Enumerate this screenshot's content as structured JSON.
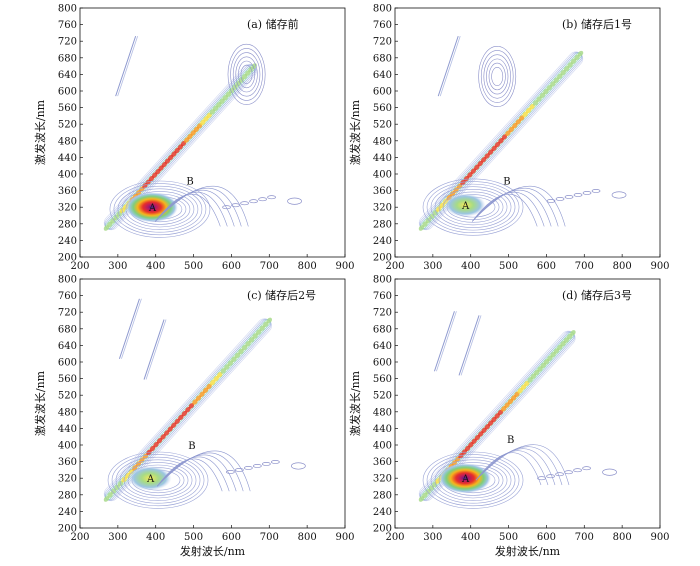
{
  "figure": {
    "xlabel": "发射波长/nm",
    "ylabel": "激发波长/nm"
  },
  "chart_data": [
    {
      "type": "contour",
      "title": "(a) 储存前",
      "xlabel": "",
      "ylabel": "激发波长/nm",
      "xlim": [
        200,
        900
      ],
      "ylim": [
        200,
        800
      ],
      "xticks": [
        200,
        300,
        400,
        500,
        600,
        700,
        800,
        900
      ],
      "yticks": [
        200,
        240,
        280,
        320,
        360,
        400,
        440,
        480,
        520,
        560,
        600,
        640,
        680,
        720,
        760,
        800
      ],
      "grid": false,
      "rayleigh_band": {
        "from": [
          270,
          270
        ],
        "to": [
          660,
          660
        ]
      },
      "peaks": [
        {
          "label": "A",
          "em": 390,
          "ex": 320,
          "intensity": 1.0
        },
        {
          "label": "B",
          "em": 465,
          "ex": 370,
          "intensity": 0.2
        }
      ],
      "scatter_features": [
        {
          "em": 640,
          "ex": 640,
          "intensity": 0.2
        },
        {
          "em": 310,
          "ex": 660,
          "intensity": 0.1
        },
        {
          "em": 640,
          "ex": 320,
          "intensity": 0.15
        }
      ]
    },
    {
      "type": "contour",
      "title": "(b) 储存后1号",
      "xlabel": "",
      "ylabel": "激发波长/nm",
      "xlim": [
        200,
        900
      ],
      "ylim": [
        200,
        800
      ],
      "xticks": [
        200,
        300,
        400,
        500,
        600,
        700,
        800,
        900
      ],
      "yticks": [
        200,
        240,
        280,
        320,
        360,
        400,
        440,
        480,
        520,
        560,
        600,
        640,
        680,
        720,
        760,
        800
      ],
      "grid": false,
      "rayleigh_band": {
        "from": [
          270,
          270
        ],
        "to": [
          690,
          690
        ]
      },
      "peaks": [
        {
          "label": "A",
          "em": 385,
          "ex": 325,
          "intensity": 0.45
        },
        {
          "label": "B",
          "em": 470,
          "ex": 370,
          "intensity": 0.2
        }
      ],
      "scatter_features": [
        {
          "em": 470,
          "ex": 635,
          "intensity": 0.15
        },
        {
          "em": 330,
          "ex": 660,
          "intensity": 0.1
        },
        {
          "em": 665,
          "ex": 335,
          "intensity": 0.1
        }
      ]
    },
    {
      "type": "contour",
      "title": "(c) 储存后2号",
      "xlabel": "发射波长/nm",
      "ylabel": "激发波长/nm",
      "xlim": [
        200,
        900
      ],
      "ylim": [
        200,
        800
      ],
      "xticks": [
        200,
        300,
        400,
        500,
        600,
        700,
        800,
        900
      ],
      "yticks": [
        200,
        240,
        280,
        320,
        360,
        400,
        440,
        480,
        520,
        560,
        600,
        640,
        680,
        720,
        760,
        800
      ],
      "grid": false,
      "rayleigh_band": {
        "from": [
          270,
          270
        ],
        "to": [
          700,
          700
        ]
      },
      "peaks": [
        {
          "label": "A",
          "em": 385,
          "ex": 320,
          "intensity": 0.55
        },
        {
          "label": "B",
          "em": 470,
          "ex": 385,
          "intensity": 0.2
        }
      ],
      "scatter_features": [
        {
          "em": 385,
          "ex": 630,
          "intensity": 0.2
        },
        {
          "em": 320,
          "ex": 680,
          "intensity": 0.1
        },
        {
          "em": 650,
          "ex": 335,
          "intensity": 0.15
        }
      ]
    },
    {
      "type": "contour",
      "title": "(d) 储存后3号",
      "xlabel": "发射波长/nm",
      "ylabel": "激发波长/nm",
      "xlim": [
        200,
        900
      ],
      "ylim": [
        200,
        800
      ],
      "xticks": [
        200,
        300,
        400,
        500,
        600,
        700,
        800,
        900
      ],
      "yticks": [
        200,
        240,
        280,
        320,
        360,
        400,
        440,
        480,
        520,
        560,
        600,
        640,
        680,
        720,
        760,
        800
      ],
      "grid": false,
      "rayleigh_band": {
        "from": [
          270,
          270
        ],
        "to": [
          670,
          670
        ]
      },
      "peaks": [
        {
          "label": "A",
          "em": 385,
          "ex": 320,
          "intensity": 1.0
        },
        {
          "label": "B",
          "em": 480,
          "ex": 400,
          "intensity": 0.2
        }
      ],
      "scatter_features": [
        {
          "em": 385,
          "ex": 640,
          "intensity": 0.2
        },
        {
          "em": 320,
          "ex": 650,
          "intensity": 0.1
        },
        {
          "em": 640,
          "ex": 320,
          "intensity": 0.15
        }
      ]
    }
  ]
}
